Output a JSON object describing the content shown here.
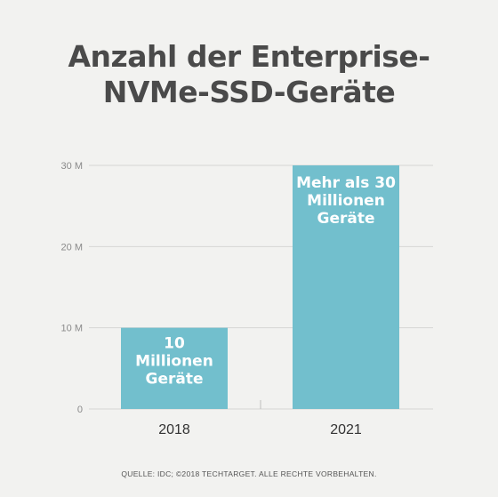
{
  "title_lines": [
    "Anzahl der Enterprise-",
    "NVMe-SSD-Geräte"
  ],
  "source": "QUELLE: IDC; ©2018 TECHTARGET. ALLE RECHTE VORBEHALTEN.",
  "colors": {
    "bar": "#72bfcd",
    "grid": "#d7d7d5",
    "axis_text": "#8a8a8a",
    "category_text": "#333333",
    "title": "#4a4a4a",
    "background": "#f2f2f0"
  },
  "chart_data": {
    "type": "bar",
    "title": "Anzahl der Enterprise-NVMe-SSD-Geräte",
    "xlabel": "",
    "ylabel": "",
    "categories": [
      "2018",
      "2021"
    ],
    "values": [
      10,
      30
    ],
    "ylim": [
      0,
      30
    ],
    "yticks": [
      0,
      10,
      20,
      30
    ],
    "ytick_labels": [
      "0",
      "10 M",
      "20 M",
      "30 M"
    ],
    "grid": true,
    "legend": "none",
    "bar_labels": [
      [
        "10",
        "Millionen",
        "Geräte"
      ],
      [
        "Mehr als 30",
        "Millionen",
        "Geräte"
      ]
    ]
  }
}
